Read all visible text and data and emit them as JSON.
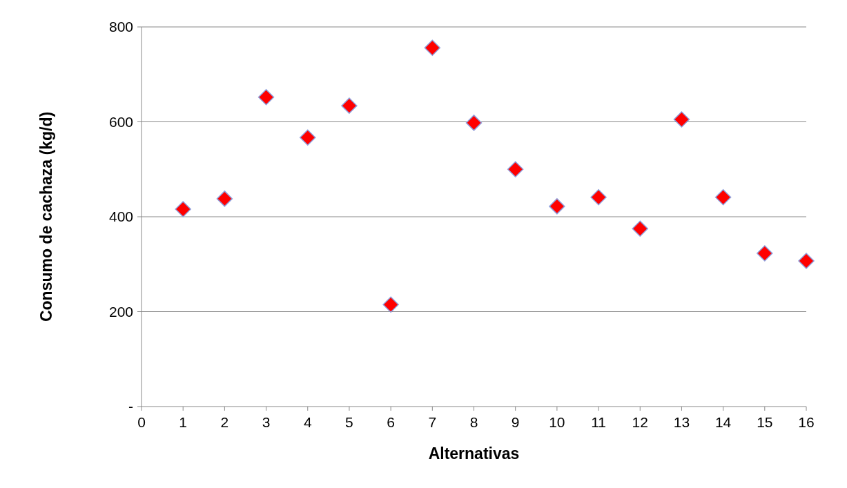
{
  "chart_data": {
    "type": "scatter",
    "xlabel": "Alternativas",
    "ylabel": "Consumo de cachaza (kg/d)",
    "x": [
      1,
      2,
      3,
      4,
      5,
      6,
      7,
      8,
      9,
      10,
      11,
      12,
      13,
      14,
      15,
      16
    ],
    "series": [
      {
        "color": "#ff0000",
        "values": [
          416,
          438,
          652,
          567,
          634,
          215,
          756,
          598,
          500,
          422,
          441,
          375,
          605,
          441,
          323,
          307
        ]
      }
    ],
    "xlim": [
      0,
      16
    ],
    "xticks": [
      0,
      1,
      2,
      3,
      4,
      5,
      6,
      7,
      8,
      9,
      10,
      11,
      12,
      13,
      14,
      15,
      16
    ],
    "ylim": [
      0,
      800
    ],
    "yticks": [
      {
        "value": 0,
        "label": "-"
      },
      200,
      400,
      600,
      800
    ],
    "grid": "y",
    "marker": "diamond"
  }
}
